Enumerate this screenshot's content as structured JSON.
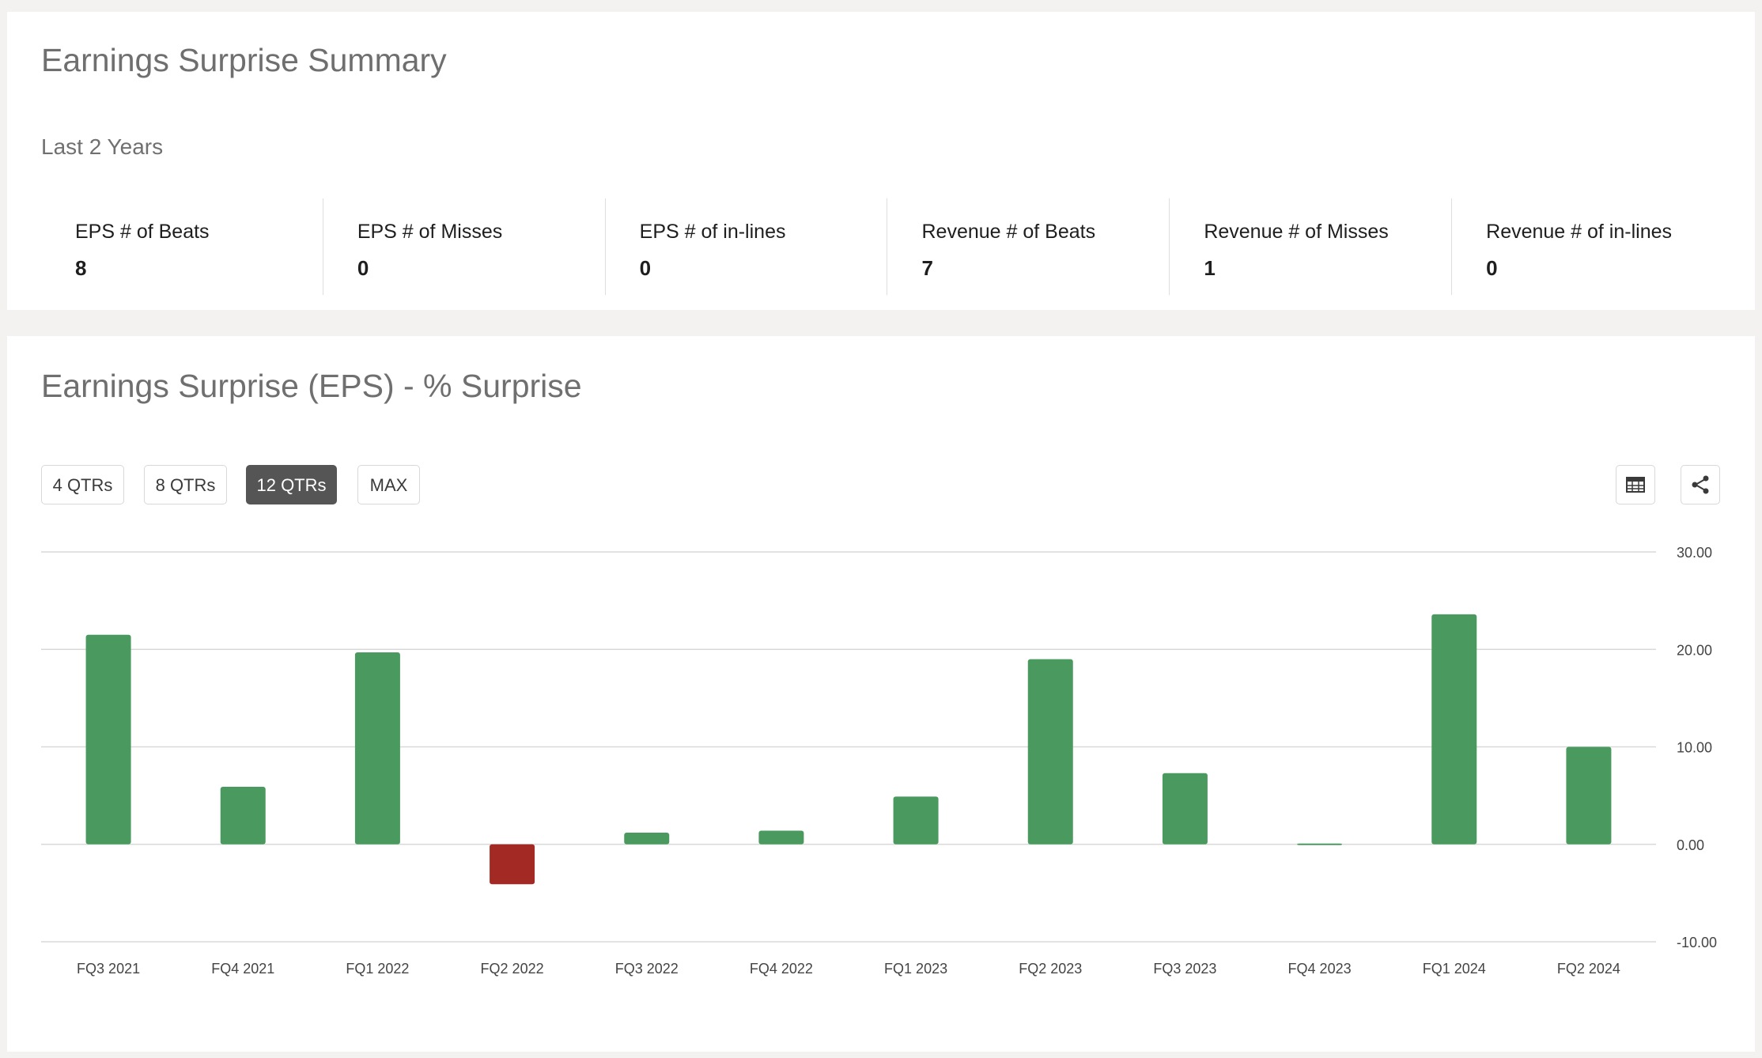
{
  "summary": {
    "title": "Earnings Surprise Summary",
    "period": "Last 2 Years",
    "stats": [
      {
        "label": "EPS # of Beats",
        "value": "8"
      },
      {
        "label": "EPS # of Misses",
        "value": "0"
      },
      {
        "label": "EPS # of in-lines",
        "value": "0"
      },
      {
        "label": "Revenue # of Beats",
        "value": "7"
      },
      {
        "label": "Revenue # of Misses",
        "value": "1"
      },
      {
        "label": "Revenue # of in-lines",
        "value": "0"
      }
    ]
  },
  "chart_section": {
    "title": "Earnings Surprise (EPS) - % Surprise",
    "range_buttons": [
      "4 QTRs",
      "8 QTRs",
      "12 QTRs",
      "MAX"
    ],
    "active_range": "12 QTRs",
    "icons": [
      "table-icon",
      "share-icon"
    ]
  },
  "colors": {
    "positive": "#4a9a5f",
    "negative": "#a32a24",
    "grid": "#d9d9d9",
    "active_button": "#555555"
  },
  "chart_data": {
    "type": "bar",
    "categories": [
      "FQ3 2021",
      "FQ4 2021",
      "FQ1 2022",
      "FQ2 2022",
      "FQ3 2022",
      "FQ4 2022",
      "FQ1 2023",
      "FQ2 2023",
      "FQ3 2023",
      "FQ4 2023",
      "FQ1 2024",
      "FQ2 2024"
    ],
    "values": [
      21.5,
      5.9,
      19.7,
      -4.1,
      1.2,
      1.4,
      4.9,
      19.0,
      7.3,
      0.1,
      23.6,
      10.0
    ],
    "ylim": [
      -10,
      30
    ],
    "yticks": [
      30,
      20,
      10,
      0,
      -10
    ],
    "ytick_labels": [
      "30.00",
      "20.00",
      "10.00",
      "0.00",
      "-10.00"
    ],
    "grid": true,
    "title": "",
    "xlabel": "",
    "ylabel": ""
  }
}
